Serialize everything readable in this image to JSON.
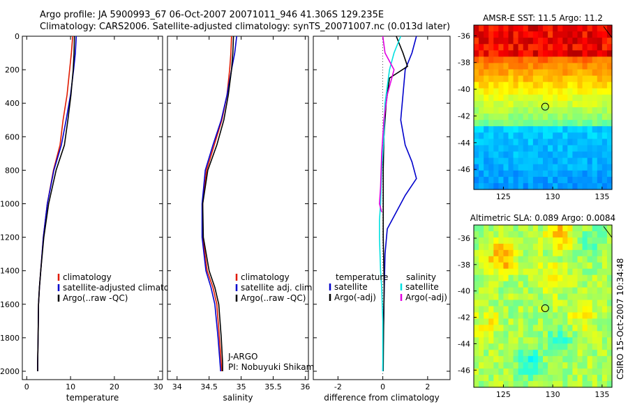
{
  "header": {
    "line1": "Argo profile: JA 5900993_67 06-Oct-2007 20071011_946 41.306S 129.235E",
    "line2": "Climatology: CARS2006. Satellite-adjusted climatology: synTS_20071007.nc (0.013d later)"
  },
  "side_stamp": "CSIRO 15-Oct-2007 10:34:48",
  "colors": {
    "climatology": "#e01a00",
    "satellite": "#0000cc",
    "argo": "#000000",
    "sal_sat": "#00e0e0",
    "sal_argo": "#e000e0"
  },
  "chart_data": [
    {
      "id": "temperature",
      "type": "line",
      "xlabel": "temperature",
      "xlim": [
        -1,
        31
      ],
      "ylim": [
        0,
        2050
      ],
      "y_reversed": true,
      "xticks": [
        "0",
        "10",
        "20",
        "30"
      ],
      "yticks": [
        "0",
        "200",
        "400",
        "600",
        "800",
        "1000",
        "1200",
        "1400",
        "1600",
        "1800",
        "2000"
      ],
      "series": [
        {
          "name": "climatology",
          "color": "#e01a00",
          "x": [
            10.5,
            10.2,
            9.8,
            9.2,
            8.3,
            7.6,
            6.1,
            4.7,
            3.8,
            3.2,
            2.9,
            2.7,
            2.6,
            2.5,
            2.5
          ],
          "y": [
            0,
            100,
            200,
            350,
            500,
            650,
            800,
            1000,
            1200,
            1400,
            1500,
            1600,
            1800,
            1950,
            2000
          ]
        },
        {
          "name": "satellite-adjusted climatology",
          "color": "#0000cc",
          "x": [
            11.3,
            11.1,
            10.7,
            10.0,
            9.0,
            7.9,
            6.2,
            4.7,
            3.8,
            3.2,
            2.9,
            2.7,
            2.6,
            2.5,
            2.5
          ],
          "y": [
            0,
            100,
            200,
            350,
            500,
            650,
            800,
            1000,
            1200,
            1400,
            1500,
            1600,
            1800,
            1950,
            2000
          ]
        },
        {
          "name": "Argo(..raw -QC)",
          "color": "#000000",
          "x": [
            10.9,
            10.8,
            10.6,
            10.1,
            9.4,
            8.6,
            6.7,
            5.0,
            3.9,
            3.2,
            2.9,
            2.7,
            2.6,
            2.5,
            2.5
          ],
          "y": [
            0,
            100,
            200,
            350,
            500,
            650,
            800,
            1000,
            1200,
            1400,
            1500,
            1600,
            1800,
            1950,
            2000
          ]
        }
      ],
      "legend": [
        "climatology",
        "satellite-adjusted climatology",
        "Argo(..raw -QC)"
      ]
    },
    {
      "id": "salinity",
      "type": "line",
      "xlabel": "salinity",
      "xlim": [
        33.85,
        36.05
      ],
      "ylim": [
        0,
        2050
      ],
      "y_reversed": true,
      "xticks": [
        "34",
        "34.5",
        "35",
        "35.5",
        "36"
      ],
      "series": [
        {
          "name": "climatology",
          "color": "#e01a00",
          "x": [
            34.85,
            34.84,
            34.82,
            34.78,
            34.7,
            34.58,
            34.46,
            34.4,
            34.4,
            34.47,
            34.56,
            34.62,
            34.66,
            34.69,
            34.7
          ],
          "y": [
            0,
            100,
            200,
            350,
            500,
            650,
            800,
            1000,
            1200,
            1400,
            1500,
            1600,
            1800,
            1950,
            2000
          ]
        },
        {
          "name": "satellite adj. clim.",
          "color": "#0000cc",
          "x": [
            34.93,
            34.9,
            34.85,
            34.78,
            34.69,
            34.56,
            34.44,
            34.39,
            34.39,
            34.45,
            34.53,
            34.59,
            34.64,
            34.67,
            34.68
          ],
          "y": [
            0,
            100,
            200,
            350,
            500,
            650,
            800,
            1000,
            1200,
            1400,
            1500,
            1600,
            1800,
            1950,
            2000
          ]
        },
        {
          "name": "Argo(..raw -QC)",
          "color": "#000000",
          "x": [
            34.88,
            34.87,
            34.85,
            34.8,
            34.73,
            34.62,
            34.48,
            34.4,
            34.41,
            34.5,
            34.59,
            34.65,
            34.69,
            34.71,
            34.71
          ],
          "y": [
            0,
            100,
            200,
            350,
            500,
            650,
            800,
            1000,
            1200,
            1400,
            1500,
            1600,
            1800,
            1950,
            2000
          ]
        }
      ],
      "legend": [
        "climatology",
        "satellite adj. clim.",
        "Argo(..raw -QC)"
      ],
      "annotation": {
        "line1": "J-ARGO",
        "line2": "PI: Nobuyuki Shikama"
      }
    },
    {
      "id": "difference",
      "type": "line",
      "xlabel": "difference from climatology",
      "xlim": [
        -3.1,
        3.0
      ],
      "ylim": [
        0,
        2050
      ],
      "y_reversed": true,
      "xticks": [
        "-2",
        "0",
        "2"
      ],
      "series": [
        {
          "name": "temperature satellite",
          "color": "#0000cc",
          "x": [
            1.5,
            1.3,
            1.0,
            0.9,
            0.8,
            1.0,
            1.3,
            1.5,
            1.0,
            0.6,
            0.2,
            0.1,
            0.05,
            0.0
          ],
          "y": [
            0,
            100,
            200,
            350,
            500,
            650,
            750,
            850,
            950,
            1050,
            1150,
            1300,
            1600,
            2000
          ]
        },
        {
          "name": "temperature Argo(-adj)",
          "color": "#000000",
          "x": [
            0.6,
            0.9,
            1.1,
            0.3,
            0.15,
            0.05,
            0.02,
            0.02,
            0.02,
            0.05,
            0.06,
            0.05,
            0.03,
            0.02
          ],
          "y": [
            0,
            100,
            180,
            250,
            400,
            600,
            800,
            1000,
            1200,
            1400,
            1500,
            1600,
            1800,
            2000
          ]
        },
        {
          "name": "salinity satellite",
          "color": "#00e0e0",
          "x": [
            0.8,
            0.5,
            0.3,
            0.1,
            0.05,
            -0.05,
            -0.1,
            -0.15,
            -0.15,
            -0.1,
            -0.05,
            0.0,
            0.0,
            0.0
          ],
          "y": [
            0,
            100,
            200,
            400,
            600,
            800,
            1000,
            1100,
            1200,
            1400,
            1500,
            1700,
            1900,
            2000
          ]
        },
        {
          "name": "salinity Argo(-adj)",
          "color": "#e000e0",
          "x": [
            0.0,
            0.1,
            0.5,
            0.2,
            0.05,
            -0.05,
            -0.1,
            -0.15,
            -0.05
          ],
          "y": [
            0,
            100,
            200,
            350,
            500,
            700,
            900,
            1000,
            1050
          ]
        }
      ],
      "legend": {
        "temperature_header": "temperature",
        "salinity_header": "salinity",
        "temperature_items": [
          "satellite",
          "Argo(-adj)"
        ],
        "salinity_items": [
          "satellite",
          "Argo(-adj)"
        ]
      }
    },
    {
      "id": "sst_map",
      "type": "heatmap",
      "title": "AMSR-E SST: 11.5 Argo: 11.2",
      "xlim": [
        122,
        136
      ],
      "ylim": [
        -47.5,
        -35.2
      ],
      "xticks": [
        "125",
        "130",
        "135"
      ],
      "yticks": [
        "-36",
        "-38",
        "-40",
        "-42",
        "-44",
        "-46"
      ],
      "marker": {
        "lon": 129.235,
        "lat": -41.306
      }
    },
    {
      "id": "sla_map",
      "type": "heatmap",
      "title": "Altimetric SLA: 0.089 Argo: 0.0084",
      "xlim": [
        122,
        136
      ],
      "ylim": [
        -47.3,
        -35.0
      ],
      "xticks": [
        "125",
        "130",
        "135"
      ],
      "yticks": [
        "-36",
        "-38",
        "-40",
        "-42",
        "-44",
        "-46"
      ],
      "marker": {
        "lon": 129.235,
        "lat": -41.306
      }
    }
  ]
}
